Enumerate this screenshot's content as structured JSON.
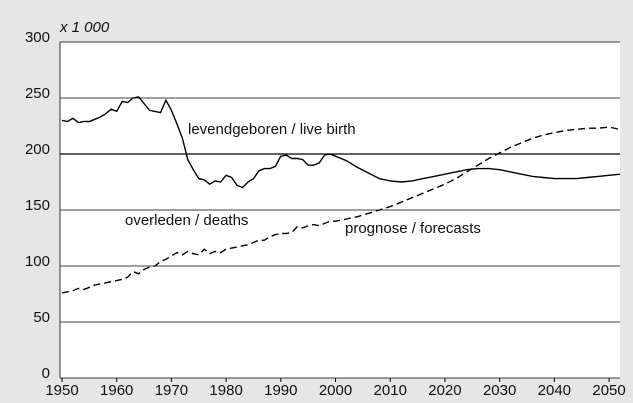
{
  "chart_data": {
    "type": "line",
    "unit_label": "x 1 000",
    "annotations": [
      "levendgeboren / live birth",
      "overleden / deaths",
      "prognose / forecasts"
    ],
    "x": [
      1950,
      1951,
      1952,
      1953,
      1954,
      1955,
      1956,
      1957,
      1958,
      1959,
      1960,
      1961,
      1962,
      1963,
      1964,
      1965,
      1966,
      1967,
      1968,
      1969,
      1970,
      1971,
      1972,
      1973,
      1974,
      1975,
      1976,
      1977,
      1978,
      1979,
      1980,
      1981,
      1982,
      1983,
      1984,
      1985,
      1986,
      1987,
      1988,
      1989,
      1990,
      1991,
      1992,
      1993,
      1994,
      1995,
      1996,
      1997,
      1998,
      1999,
      2000,
      2002,
      2004,
      2006,
      2008,
      2010,
      2012,
      2014,
      2016,
      2018,
      2020,
      2022,
      2024,
      2026,
      2028,
      2030,
      2032,
      2034,
      2036,
      2038,
      2040,
      2042,
      2044,
      2046,
      2048,
      2050,
      2052
    ],
    "series": [
      {
        "name": "levendgeboren / live birth",
        "color": "#000000",
        "line_style": "solid",
        "values": [
          230,
          229,
          232,
          228,
          229,
          229,
          231,
          233,
          236,
          240,
          238,
          247,
          246,
          250,
          251,
          245,
          239,
          238,
          237,
          248,
          239,
          227,
          214,
          195,
          186,
          178,
          177,
          173,
          176,
          175,
          181,
          179,
          172,
          170,
          175,
          178,
          185,
          187,
          187,
          189,
          198,
          199,
          196,
          196,
          195,
          190,
          190,
          192,
          199,
          200,
          198,
          194,
          188,
          183,
          178,
          176,
          175,
          176,
          178,
          180,
          182,
          184,
          186,
          187,
          187,
          186,
          184,
          182,
          180,
          179,
          178,
          178,
          178,
          179,
          180,
          181,
          182
        ]
      },
      {
        "name": "overleden / deaths",
        "color": "#000000",
        "line_style": "dashed",
        "values": [
          76,
          77,
          78,
          80,
          79,
          81,
          83,
          84,
          85,
          86,
          87,
          88,
          90,
          95,
          93,
          97,
          99,
          100,
          104,
          106,
          109,
          112,
          110,
          113,
          111,
          110,
          115,
          111,
          113,
          112,
          115,
          116,
          117,
          118,
          119,
          121,
          123,
          123,
          126,
          128,
          129,
          129,
          130,
          135,
          134,
          136,
          137,
          136,
          138,
          140,
          140,
          142,
          144,
          147,
          150,
          153,
          157,
          161,
          165,
          169,
          173,
          178,
          184,
          190,
          196,
          201,
          206,
          210,
          214,
          217,
          219,
          221,
          222,
          223,
          223,
          224,
          222
        ]
      }
    ],
    "xlim": [
      1950,
      2052
    ],
    "xticks": [
      1950,
      1960,
      1970,
      1980,
      1990,
      2000,
      2010,
      2020,
      2030,
      2040,
      2050
    ],
    "ylim": [
      0,
      300
    ],
    "yticks": [
      0,
      50,
      100,
      150,
      200,
      250,
      300
    ],
    "grid": true
  }
}
